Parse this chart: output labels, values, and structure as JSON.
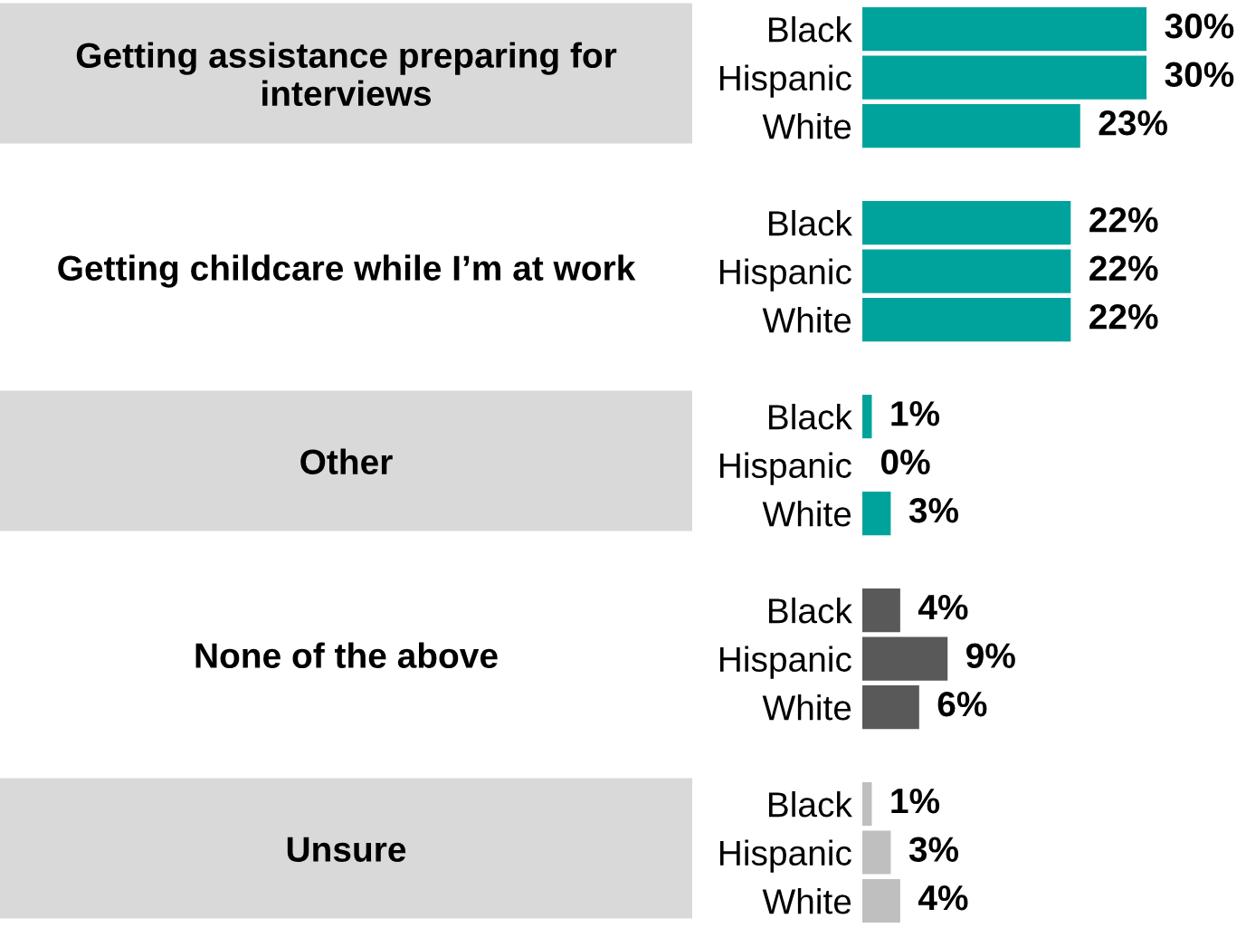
{
  "chart_data": {
    "type": "bar",
    "orientation": "horizontal",
    "categories": [
      "Black",
      "Hispanic",
      "White",
      "Black",
      "Hispanic",
      "White",
      "Black",
      "Hispanic",
      "White",
      "Black",
      "Hispanic",
      "White",
      "Black",
      "Hispanic",
      "White"
    ],
    "values": [
      30,
      30,
      23,
      22,
      22,
      22,
      1,
      0,
      3,
      4,
      9,
      6,
      1,
      3,
      4
    ],
    "colors": [
      "#00a39b",
      "#00a39b",
      "#00a39b",
      "#00a39b",
      "#00a39b",
      "#00a39b",
      "#00a39b",
      "#00a39b",
      "#00a39b",
      "#595959",
      "#595959",
      "#595959",
      "#bfbfbf",
      "#bfbfbf",
      "#bfbfbf"
    ],
    "value_labels": [
      "30%",
      "30%",
      "23%",
      "22%",
      "22%",
      "22%",
      "1%",
      "0%",
      "3%",
      "4%",
      "9%",
      "6%",
      "1%",
      "3%",
      "4%"
    ],
    "annotations": [
      "Getting assistance preparing for interviews",
      "Getting childcare while I’m at work",
      "Other",
      "None of the above",
      "Unsure"
    ]
  }
}
